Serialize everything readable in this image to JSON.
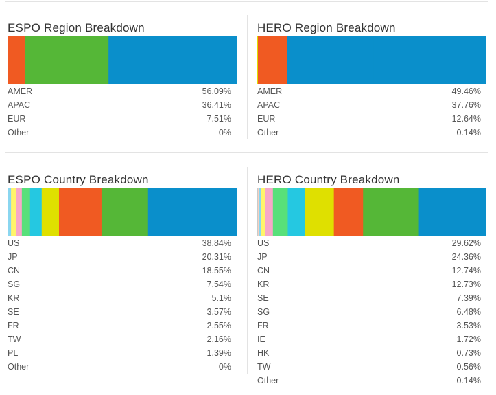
{
  "colors": [
    "#0a8fcb",
    "#55b737",
    "#f05a22",
    "#dfe000",
    "#25c8e1",
    "#58e07a",
    "#f7a8c8",
    "#fff56a",
    "#8ad6f0",
    "#f6d0c0"
  ],
  "chart_data": [
    {
      "type": "bar",
      "title": "ESPO Region Breakdown",
      "stacked": true,
      "orientation": "horizontal",
      "categories": [
        "AMER",
        "APAC",
        "EUR",
        "Other"
      ],
      "values": [
        "56.09%",
        "36.41%",
        "7.51%",
        "0%"
      ],
      "numeric": [
        56.09,
        36.41,
        7.51,
        0
      ],
      "segment_colors": [
        "#0a8fcb",
        "#55b737",
        "#f05a22",
        "#dfe000"
      ],
      "xlim": [
        0,
        100
      ]
    },
    {
      "type": "bar",
      "title": "HERO Region Breakdown",
      "stacked": true,
      "orientation": "horizontal",
      "categories": [
        "AMER",
        "APAC",
        "EUR",
        "Other"
      ],
      "values": [
        "49.46%",
        "37.76%",
        "12.64%",
        "0.14%"
      ],
      "numeric": [
        49.46,
        37.76,
        12.64,
        0.14
      ],
      "segment_colors": [
        "#0a8fcb",
        "#0a8fcb",
        "#f05a22",
        "#dfe000"
      ],
      "xlim": [
        0,
        100
      ]
    },
    {
      "type": "bar",
      "title": "ESPO Country Breakdown",
      "stacked": true,
      "orientation": "horizontal",
      "categories": [
        "US",
        "JP",
        "CN",
        "SG",
        "KR",
        "SE",
        "FR",
        "TW",
        "PL",
        "Other"
      ],
      "values": [
        "38.84%",
        "20.31%",
        "18.55%",
        "7.54%",
        "5.1%",
        "3.57%",
        "2.55%",
        "2.16%",
        "1.39%",
        "0%"
      ],
      "numeric": [
        38.84,
        20.31,
        18.55,
        7.54,
        5.1,
        3.57,
        2.55,
        2.16,
        1.39,
        0
      ],
      "segment_colors": [
        "#0a8fcb",
        "#55b737",
        "#f05a22",
        "#dfe000",
        "#25c8e1",
        "#58e07a",
        "#f7a8c8",
        "#fff56a",
        "#8ad6f0",
        "#f6d0c0"
      ],
      "xlim": [
        0,
        100
      ]
    },
    {
      "type": "bar",
      "title": "HERO Country Breakdown",
      "stacked": true,
      "orientation": "horizontal",
      "categories": [
        "US",
        "JP",
        "CN",
        "KR",
        "SE",
        "SG",
        "FR",
        "IE",
        "HK",
        "TW",
        "Other"
      ],
      "values": [
        "29.62%",
        "24.36%",
        "12.74%",
        "12.73%",
        "7.39%",
        "6.48%",
        "3.53%",
        "1.72%",
        "0.73%",
        "0.56%",
        "0.14%"
      ],
      "numeric": [
        29.62,
        24.36,
        12.74,
        12.73,
        7.39,
        6.48,
        3.53,
        1.72,
        0.73,
        0.56,
        0.14
      ],
      "segment_colors": [
        "#0a8fcb",
        "#55b737",
        "#f05a22",
        "#dfe000",
        "#25c8e1",
        "#58e07a",
        "#f7a8c8",
        "#fff56a",
        "#8ad6f0",
        "#f6d0c0",
        "#c9c9c9"
      ],
      "xlim": [
        0,
        100
      ]
    }
  ]
}
